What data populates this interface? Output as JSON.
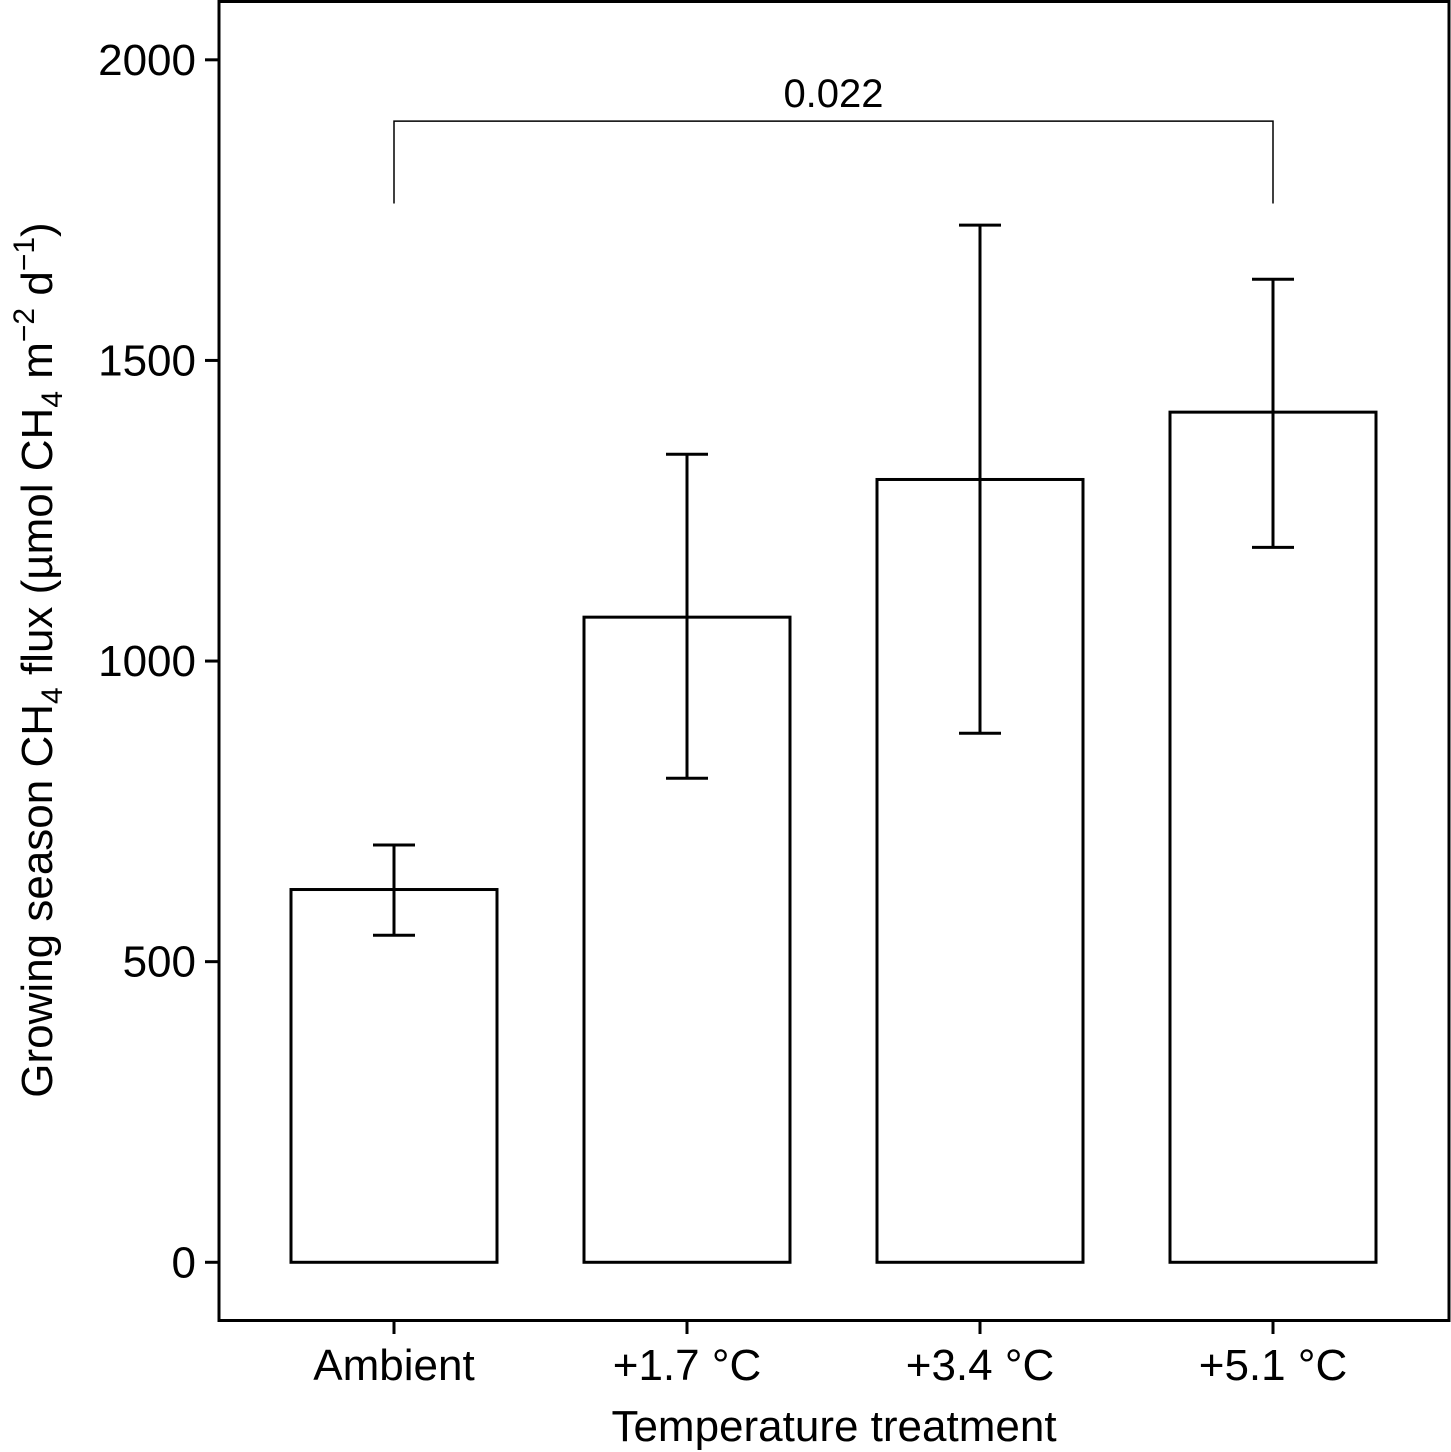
{
  "chart_data": {
    "type": "bar",
    "title": "",
    "xlabel": "Temperature treatment",
    "ylabel_parts": {
      "main": "Growing season CH",
      "sub1": "4",
      "mid": " flux (µmol CH",
      "sub2": "4",
      "mid2": " m",
      "sup1": "−2",
      "mid3": " d",
      "sup2": "−1",
      "end": ")"
    },
    "categories": [
      "Ambient",
      "+1.7 °C",
      "+3.4 °C",
      "+5.1 °C"
    ],
    "values": [
      620,
      1073,
      1302,
      1414
    ],
    "error_upper": [
      694,
      1344,
      1725,
      1635
    ],
    "error_lower": [
      544,
      805,
      880,
      1189
    ],
    "ylim": [
      -96,
      2097
    ],
    "yticks": [
      0,
      500,
      1000,
      1500,
      2000
    ],
    "ytick_labels": [
      "0",
      "500",
      "1000",
      "1500",
      "2000"
    ],
    "grid": false,
    "annotations": [
      {
        "type": "significance-bracket",
        "from": "Ambient",
        "to": "+5.1 °C",
        "label": "0.022",
        "y": 1898,
        "tick_bottom": 1761
      }
    ],
    "colors": {
      "bar_fill": "#ffffff",
      "stroke": "#000000"
    }
  }
}
